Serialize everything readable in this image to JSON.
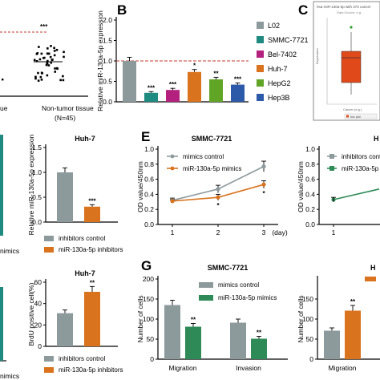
{
  "colors": {
    "l02": "#8d9a9c",
    "smmc7721": "#1f8a80",
    "bel7402": "#b3207d",
    "huh7": "#d9731d",
    "hepg2": "#61a527",
    "hep3b": "#2c5aa8",
    "control_grey": "#8d9a9c",
    "treat_orange": "#d9731d",
    "treat_green": "#2e8b57",
    "boxplot_red": "#e04a1b",
    "dashed_red": "#c0392b"
  },
  "panel_letters": {
    "B": "B",
    "C": "C",
    "E": "E",
    "G": "G"
  },
  "panel_a": {
    "sig": "***",
    "cat_left": "ue",
    "cat_right": "Non-tumor tissue",
    "n_right": "(N=45)"
  },
  "panel_c": {
    "header": "hsa-miR-130a-5p with 370 cancer",
    "subtitle": "Data Source: e.g.",
    "xlabel": "Cancer (e.g.)",
    "legend_box": "box plot",
    "legend_scatter": "jitter"
  },
  "left_partial": {
    "label_a": "nimics",
    "label_b": "nimics"
  },
  "chart_data": [
    {
      "id": "B",
      "type": "bar",
      "title": "",
      "ylabel": "Relative miR-130a-5p expression",
      "ylim": [
        0,
        2.0
      ],
      "yticks": [
        "0.0",
        "0.5",
        "1.0",
        "1.5",
        "2.0"
      ],
      "reference_line": 1.0,
      "categories": [
        "L02",
        "SMMC-7721",
        "Bel-7402",
        "Huh-7",
        "HepG2",
        "Hep3B"
      ],
      "values": [
        1.0,
        0.22,
        0.29,
        0.73,
        0.55,
        0.42
      ],
      "errors": [
        0.09,
        0.03,
        0.04,
        0.06,
        0.05,
        0.04
      ],
      "significance": [
        "",
        "***",
        "***",
        "*",
        "**",
        "***"
      ],
      "legend": [
        "L02",
        "SMMC-7721",
        "Bel-7402",
        "Huh-7",
        "HepG2",
        "Hep3B"
      ]
    },
    {
      "id": "D-huh7",
      "type": "bar",
      "title": "Huh-7",
      "ylabel": "Relative miR-130a-5p expression",
      "ylim": [
        0,
        1.5
      ],
      "yticks": [
        "0.0",
        "0.5",
        "1.0",
        "1.5"
      ],
      "categories": [
        "inhibitors control",
        "miR-130a-5p inhibitors"
      ],
      "values": [
        1.0,
        0.31
      ],
      "errors": [
        0.09,
        0.04
      ],
      "significance": [
        "",
        "***"
      ],
      "legend": [
        "inhibitors control",
        "miR-130a-5p inhibitors"
      ]
    },
    {
      "id": "E",
      "type": "line",
      "title": "SMMC-7721",
      "ylabel": "OD value/450nm",
      "xlabel": "(day)",
      "ylim": [
        0.0,
        1.0
      ],
      "yticks": [
        "0.0",
        "0.2",
        "0.4",
        "0.6",
        "0.8",
        "1.0"
      ],
      "x": [
        1,
        2,
        3
      ],
      "series": [
        {
          "name": "mimics control",
          "values": [
            0.32,
            0.47,
            0.77
          ],
          "errors": [
            0.03,
            0.05,
            0.07
          ]
        },
        {
          "name": "miR-130a-5p mimics",
          "values": [
            0.31,
            0.36,
            0.53
          ],
          "errors": [
            0.02,
            0.04,
            0.05
          ]
        }
      ],
      "significance": [
        "",
        "*",
        "*"
      ]
    },
    {
      "id": "E-huh7",
      "type": "line",
      "title": "H",
      "ylabel": "OD value/450nm",
      "ylim": [
        0.0,
        1.0
      ],
      "yticks": [
        "0.0",
        "0.2",
        "0.4",
        "0.6",
        "0.8",
        "1.0"
      ],
      "x": [
        1,
        2
      ],
      "series": [
        {
          "name": "inhibitors control",
          "values": [
            0.33,
            0.47
          ]
        },
        {
          "name": "miR-130a-5p inhibitors",
          "values": [
            0.33,
            0.47
          ]
        }
      ]
    },
    {
      "id": "F-huh7",
      "type": "bar",
      "title": "Huh-7",
      "ylabel": "BrdU positive cell(%)",
      "ylim": [
        0,
        60
      ],
      "yticks": [
        "0",
        "20",
        "40",
        "60"
      ],
      "categories": [
        "inhibitors control",
        "miR-130a-5p inhibitors"
      ],
      "values": [
        31,
        51
      ],
      "errors": [
        3,
        5
      ],
      "significance": [
        "",
        "**"
      ],
      "legend": [
        "inhibitors control",
        "miR-130a-5p inhibitors"
      ]
    },
    {
      "id": "G",
      "type": "bar",
      "title": "SMMC-7721",
      "ylabel": "Number of cells",
      "ylim": [
        0,
        200
      ],
      "yticks": [
        "0",
        "50",
        "100",
        "150",
        "200"
      ],
      "categories": [
        "Migration",
        "Invasion"
      ],
      "series": [
        {
          "name": "mimics control",
          "values": [
            135,
            91
          ],
          "errors": [
            12,
            9
          ]
        },
        {
          "name": "miR-130a-5p mimics",
          "values": [
            81,
            51
          ],
          "errors": [
            8,
            6
          ]
        }
      ],
      "significance": [
        "**",
        "**"
      ]
    },
    {
      "id": "G-huh7",
      "type": "bar",
      "title": "H",
      "ylabel": "Number of cells",
      "ylim": [
        0,
        200
      ],
      "yticks": [
        "0",
        "50",
        "100",
        "150"
      ],
      "categories": [
        "Migration"
      ],
      "series": [
        {
          "name": "inhibitors control",
          "values": [
            71
          ],
          "errors": [
            7
          ]
        },
        {
          "name": "miR-130a-5p inhibitors",
          "values": [
            121
          ],
          "errors": [
            13
          ]
        }
      ],
      "significance": [
        "**"
      ]
    }
  ]
}
